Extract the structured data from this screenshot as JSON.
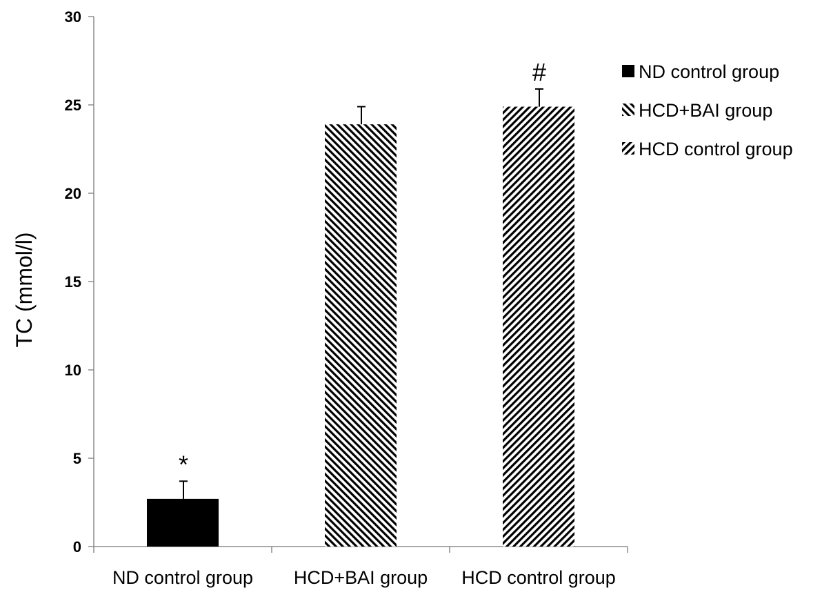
{
  "chart_data": {
    "type": "bar",
    "title": "",
    "xlabel": "",
    "ylabel": "TC (mmol/l)",
    "ylim": [
      0,
      30
    ],
    "yticks": [
      0,
      5,
      10,
      15,
      20,
      25,
      30
    ],
    "categories": [
      "ND control group",
      "HCD+BAI group",
      "HCD control group"
    ],
    "values": [
      2.7,
      23.9,
      24.9
    ],
    "errors": [
      1.0,
      1.0,
      1.0
    ],
    "bar_fills": [
      "solid",
      "hatch-backslash",
      "hatch-slash"
    ],
    "annotations": [
      "*",
      "",
      "#"
    ],
    "legend": {
      "position": "right",
      "entries": [
        "ND control group",
        "HCD+BAI group",
        "HCD control group"
      ]
    },
    "grid": false,
    "colors": {
      "bar": "#000000",
      "background": "#ffffff"
    }
  }
}
